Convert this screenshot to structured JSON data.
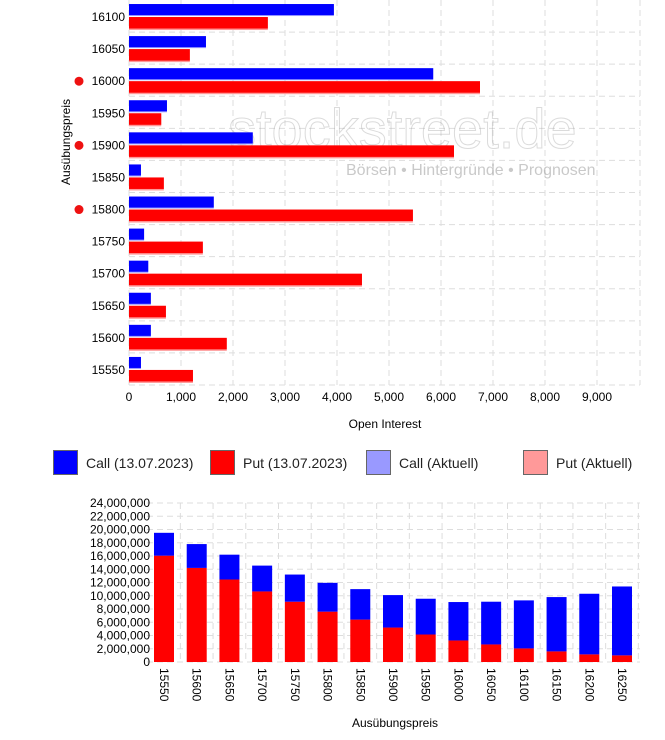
{
  "watermark": {
    "logo": "stockstreet.de",
    "tagline": "Börsen • Hintergründe • Prognosen"
  },
  "colors": {
    "call": "#0000ff",
    "put": "#ff0000",
    "call_aktuell": "#9999ff",
    "put_aktuell": "#ff9999",
    "marker": "#ee1111"
  },
  "legend": [
    {
      "label": "Call (13.07.2023)",
      "color": "#0000ff"
    },
    {
      "label": "Put (13.07.2023)",
      "color": "#ff0000"
    },
    {
      "label": "Call (Aktuell)",
      "color": "#9999ff"
    },
    {
      "label": "Put (Aktuell)",
      "color": "#ff9999"
    }
  ],
  "chart_data": [
    {
      "type": "bar",
      "orientation": "horizontal",
      "xlabel": "Open Interest",
      "ylabel": "Ausübungspreis",
      "xlim": [
        0,
        9800
      ],
      "xticks": [
        "0",
        "1,000",
        "2,000",
        "3,000",
        "4,000",
        "5,000",
        "6,000",
        "7,000",
        "8,000",
        "9,000"
      ],
      "grid": true,
      "categories": [
        "16100",
        "16050",
        "16000",
        "15950",
        "15900",
        "15850",
        "15800",
        "15750",
        "15700",
        "15650",
        "15600",
        "15550"
      ],
      "marked_categories": [
        "16000",
        "15900",
        "15800"
      ],
      "series": [
        {
          "name": "Call (13.07.2023)",
          "values": [
            3940,
            1480,
            5850,
            730,
            2380,
            230,
            1630,
            290,
            370,
            420,
            420,
            230
          ]
        },
        {
          "name": "Put (13.07.2023)",
          "values": [
            2670,
            1170,
            6750,
            620,
            6250,
            670,
            5460,
            1420,
            4480,
            710,
            1880,
            1230
          ]
        }
      ]
    },
    {
      "type": "bar",
      "stacked": true,
      "xlabel": "Ausübungspreis",
      "ylabel": "",
      "ylim": [
        0,
        24000000
      ],
      "yticks": [
        "0",
        "2,000,000",
        "4,000,000",
        "6,000,000",
        "8,000,000",
        "10,000,000",
        "12,000,000",
        "14,000,000",
        "16,000,000",
        "18,000,000",
        "20,000,000",
        "22,000,000",
        "24,000,000"
      ],
      "grid": true,
      "categories": [
        "15550",
        "15600",
        "15650",
        "15700",
        "15750",
        "15800",
        "15850",
        "15900",
        "15950",
        "16000",
        "16050",
        "16100",
        "16150",
        "16200",
        "16250"
      ],
      "series": [
        {
          "color": "#ff0000",
          "values": [
            16050000,
            14200000,
            12450000,
            10650000,
            9100000,
            7600000,
            6400000,
            5200000,
            4150000,
            3250000,
            2650000,
            2050000,
            1600000,
            1150000,
            1000000
          ]
        },
        {
          "color": "#0000ff",
          "values": [
            3450000,
            3600000,
            3750000,
            3900000,
            4100000,
            4350000,
            4600000,
            4900000,
            5400000,
            5800000,
            6450000,
            7250000,
            8200000,
            9150000,
            10400000
          ]
        }
      ]
    }
  ]
}
